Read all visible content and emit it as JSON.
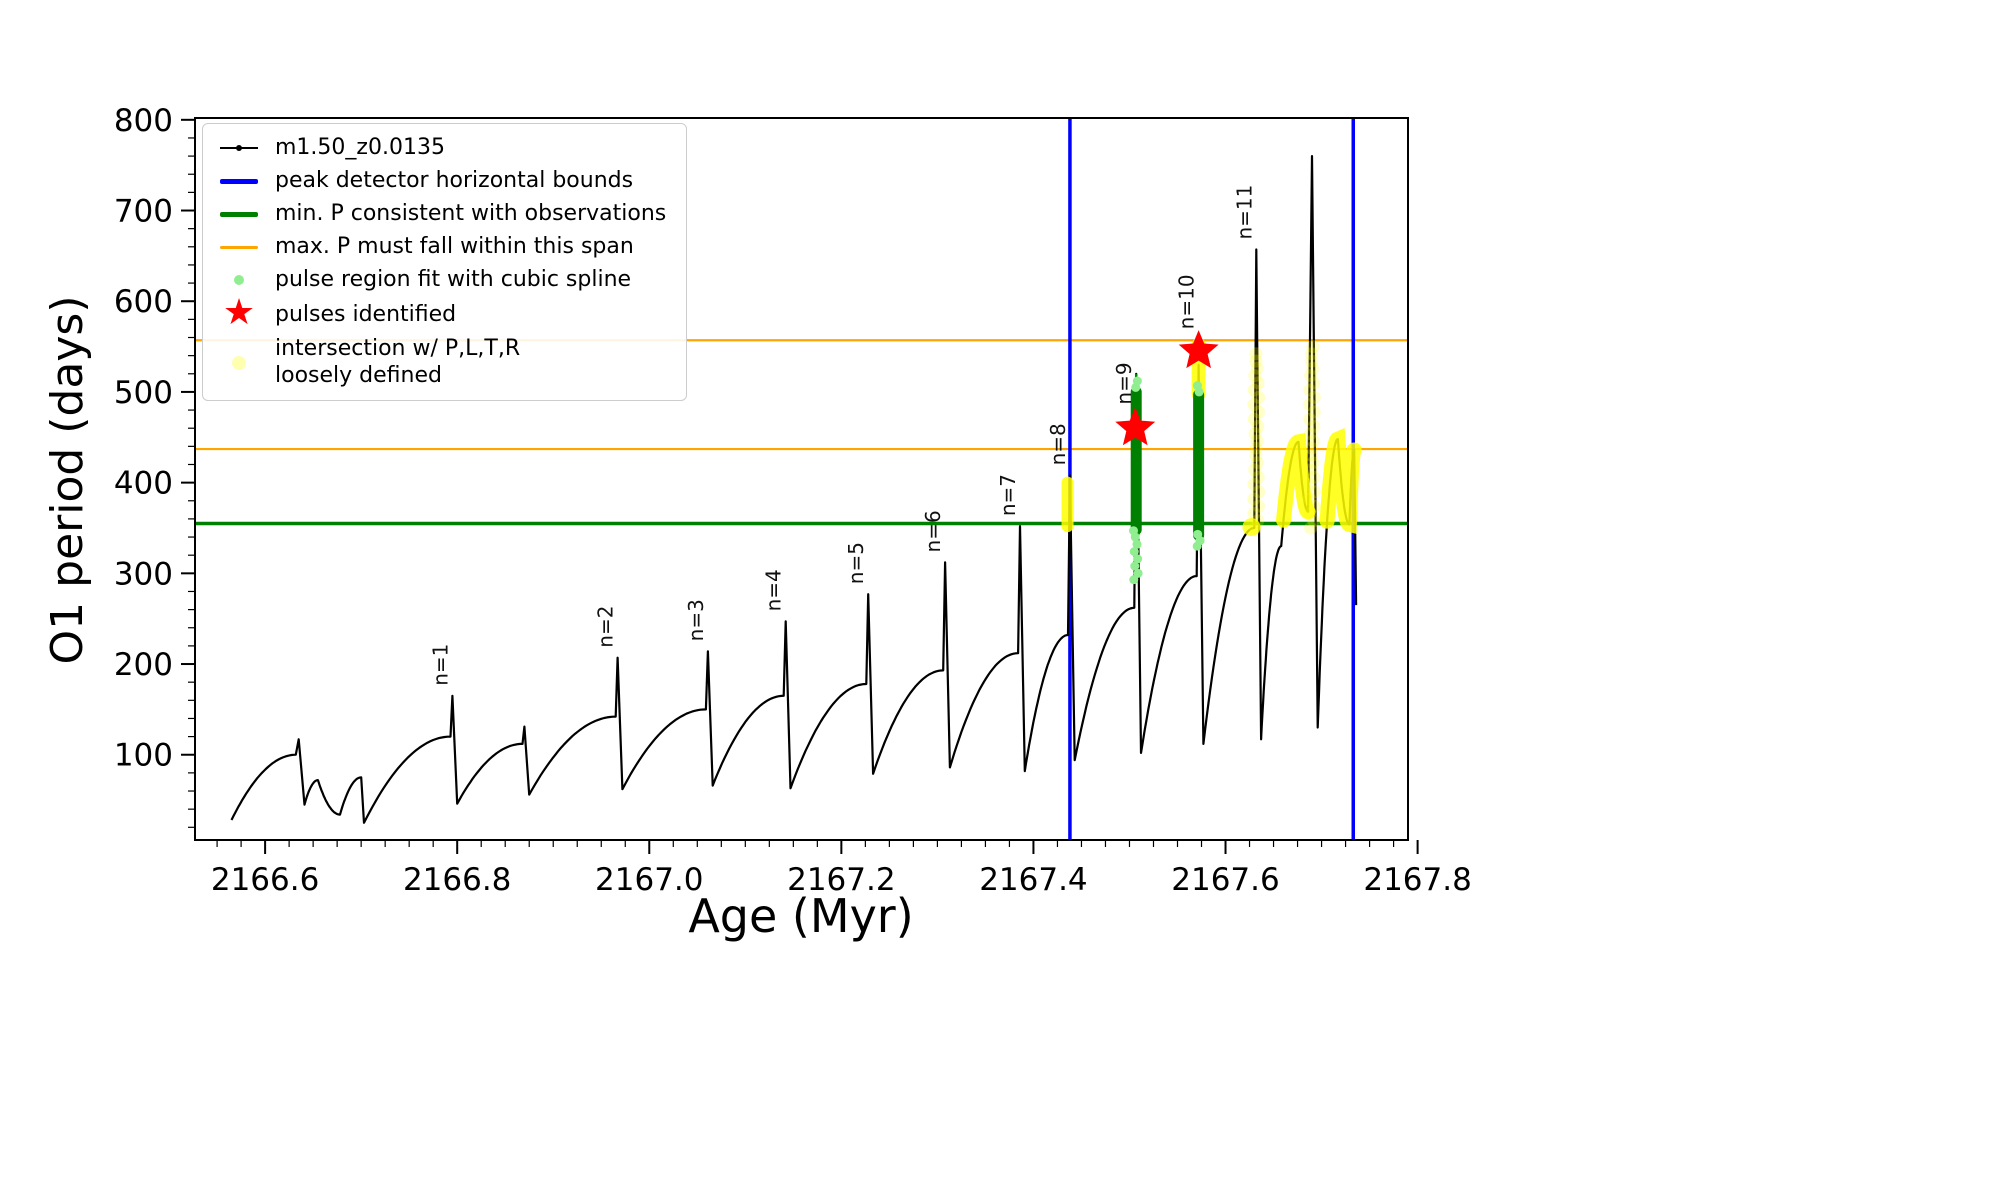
{
  "legend": {
    "entries": [
      {
        "label": "m1.50_z0.0135",
        "marker": "line-dot",
        "color": "#000000",
        "lw": 2,
        "icon": "series-line-marker-icon"
      },
      {
        "label": "peak detector horizontal bounds",
        "marker": "line",
        "color": "#0000ff",
        "lw": 5,
        "icon": "blue-line-marker-icon"
      },
      {
        "label": "min. P consistent with observations",
        "marker": "line",
        "color": "#008000",
        "lw": 5,
        "icon": "green-line-marker-icon"
      },
      {
        "label": "max. P must fall within this span",
        "marker": "line",
        "color": "#ffa500",
        "lw": 3,
        "icon": "orange-line-marker-icon"
      },
      {
        "label": "pulse region fit with cubic spline",
        "marker": "dot",
        "color": "#90ee90",
        "size": 10,
        "icon": "lightgreen-dot-marker-icon"
      },
      {
        "label": "pulses identified",
        "marker": "star",
        "color": "#ff0000",
        "icon": "red-star-marker-icon"
      },
      {
        "label": "intersection w/ P,L,T,R\nloosely defined",
        "marker": "dot-pale",
        "color": "#ffffb0",
        "size": 14,
        "icon": "yellow-dot-marker-icon"
      }
    ]
  },
  "chart_data": {
    "type": "line",
    "title": "",
    "xlabel": "Age (Myr)",
    "ylabel": "O1 period (days)",
    "series_name": "m1.50_z0.0135",
    "xlim": [
      2166.527,
      2167.79
    ],
    "ylim": [
      6,
      802
    ],
    "xticks": [
      2166.6,
      2166.8,
      2167.0,
      2167.2,
      2167.4,
      2167.6,
      2167.8
    ],
    "yticks": [
      100,
      200,
      300,
      400,
      500,
      600,
      700,
      800
    ],
    "x_minor_step": 0.025,
    "y_minor_step": 20,
    "colors": {
      "black": "#000000",
      "blue": "#0000ff",
      "green": "#008000",
      "orange": "#ffa500",
      "lightgreen": "#90ee90",
      "yellow": "#ffff00",
      "red": "#ff0000"
    },
    "hlines": [
      {
        "y": 355,
        "color": "#008000",
        "lw": 3.5,
        "name": "min-period-hline"
      },
      {
        "y": 437,
        "color": "#ffa500",
        "lw": 2.2,
        "name": "max-period-span-lower-hline"
      },
      {
        "y": 557,
        "color": "#ffa500",
        "lw": 2.2,
        "name": "max-period-span-upper-hline"
      }
    ],
    "vlines": {
      "x": [
        2167.438,
        2167.733
      ],
      "color": "#0000ff",
      "lw": 3.5
    },
    "curve_anchors": [
      [
        2166.565,
        28,
        "m"
      ],
      [
        2166.632,
        100,
        "c"
      ],
      [
        2166.635,
        117,
        "l"
      ],
      [
        2166.641,
        45,
        "l"
      ],
      [
        2166.655,
        72,
        "c"
      ],
      [
        2166.678,
        34,
        "c"
      ],
      [
        2166.7,
        75,
        "c"
      ],
      [
        2166.703,
        25,
        "l"
      ],
      [
        2166.793,
        120,
        "c"
      ],
      [
        2166.795,
        165,
        "l"
      ],
      [
        2166.8,
        46,
        "l"
      ],
      [
        2166.868,
        112,
        "c"
      ],
      [
        2166.87,
        131,
        "l"
      ],
      [
        2166.875,
        56,
        "l"
      ],
      [
        2166.965,
        142,
        "c"
      ],
      [
        2166.967,
        207,
        "l"
      ],
      [
        2166.972,
        62,
        "l"
      ],
      [
        2167.059,
        150,
        "c"
      ],
      [
        2167.061,
        214,
        "l"
      ],
      [
        2167.066,
        66,
        "l"
      ],
      [
        2167.14,
        165,
        "c"
      ],
      [
        2167.142,
        247,
        "l"
      ],
      [
        2167.147,
        63,
        "l"
      ],
      [
        2167.226,
        178,
        "c"
      ],
      [
        2167.228,
        277,
        "l"
      ],
      [
        2167.233,
        79,
        "l"
      ],
      [
        2167.306,
        193,
        "c"
      ],
      [
        2167.308,
        312,
        "l"
      ],
      [
        2167.313,
        86,
        "l"
      ],
      [
        2167.384,
        212,
        "c"
      ],
      [
        2167.386,
        352,
        "l"
      ],
      [
        2167.391,
        82,
        "l"
      ],
      [
        2167.436,
        232,
        "c"
      ],
      [
        2167.438,
        408,
        "l"
      ],
      [
        2167.443,
        94,
        "l"
      ],
      [
        2167.505,
        262,
        "c"
      ],
      [
        2167.507,
        520,
        "l"
      ],
      [
        2167.512,
        102,
        "l"
      ],
      [
        2167.57,
        297,
        "c"
      ],
      [
        2167.572,
        530,
        "l"
      ],
      [
        2167.577,
        112,
        "l"
      ],
      [
        2167.63,
        350,
        "c"
      ],
      [
        2167.632,
        657,
        "l"
      ],
      [
        2167.637,
        117,
        "l"
      ],
      [
        2167.658,
        330,
        "c"
      ],
      [
        2167.676,
        445,
        "c"
      ],
      [
        2167.686,
        368,
        "c"
      ],
      [
        2167.69,
        760,
        "l"
      ],
      [
        2167.696,
        130,
        "l"
      ],
      [
        2167.717,
        448,
        "c"
      ],
      [
        2167.729,
        354,
        "c"
      ],
      [
        2167.734,
        436,
        "c"
      ],
      [
        2167.736,
        265,
        "l"
      ]
    ],
    "pulses": [
      {
        "n": 1,
        "age": 2166.795,
        "peak": 165
      },
      {
        "n": 2,
        "age": 2166.967,
        "peak": 207
      },
      {
        "n": 3,
        "age": 2167.061,
        "peak": 214
      },
      {
        "n": 4,
        "age": 2167.142,
        "peak": 247
      },
      {
        "n": 5,
        "age": 2167.228,
        "peak": 277
      },
      {
        "n": 6,
        "age": 2167.308,
        "peak": 312
      },
      {
        "n": 7,
        "age": 2167.386,
        "peak": 352
      },
      {
        "n": 8,
        "age": 2167.438,
        "peak": 408
      },
      {
        "n": 9,
        "age": 2167.507,
        "peak": 520,
        "label_p": 475
      },
      {
        "n": 10,
        "age": 2167.572,
        "peak": 530,
        "label_p": 558
      },
      {
        "n": 11,
        "age": 2167.632,
        "peak": 657
      },
      {
        "n": null,
        "age": 2167.69,
        "peak": 760
      }
    ],
    "green_columns": [
      {
        "x": 2167.507,
        "p0": 348,
        "p1": 500,
        "tip": 520,
        "w": 11
      },
      {
        "x": 2167.572,
        "p0": 342,
        "p1": 497,
        "tip": 508,
        "w": 11
      }
    ],
    "lightgreen_dots": [
      [
        2167.5045,
        293
      ],
      [
        2167.509,
        300
      ],
      [
        2167.5055,
        308
      ],
      [
        2167.5085,
        316
      ],
      [
        2167.505,
        324
      ],
      [
        2167.5078,
        332
      ],
      [
        2167.506,
        340
      ],
      [
        2167.5042,
        347
      ],
      [
        2167.5065,
        505
      ],
      [
        2167.5082,
        512
      ],
      [
        2167.5705,
        330
      ],
      [
        2167.5735,
        336
      ],
      [
        2167.571,
        343
      ],
      [
        2167.5725,
        500
      ],
      [
        2167.5708,
        507
      ]
    ],
    "yellow_columns_strong": [
      {
        "x": 2167.4355,
        "p0": 352,
        "p1": 400,
        "w": 12
      },
      {
        "x": 2167.572,
        "p0": 498,
        "p1": 552,
        "w": 14
      }
    ],
    "yellow_columns_pale": [
      {
        "x": 2167.632,
        "p0": 350,
        "p1": 548
      },
      {
        "x": 2167.69,
        "p0": 350,
        "p1": 552
      }
    ],
    "yellow_dots": [
      [
        2167.627,
        351
      ]
    ],
    "yellow_band": {
      "t0": 2167.64,
      "t1": 2167.741,
      "p0": 352,
      "p1": 450,
      "max_slope": 40000
    },
    "stars": [
      [
        2167.506,
        460
      ],
      [
        2167.572,
        545
      ]
    ]
  }
}
